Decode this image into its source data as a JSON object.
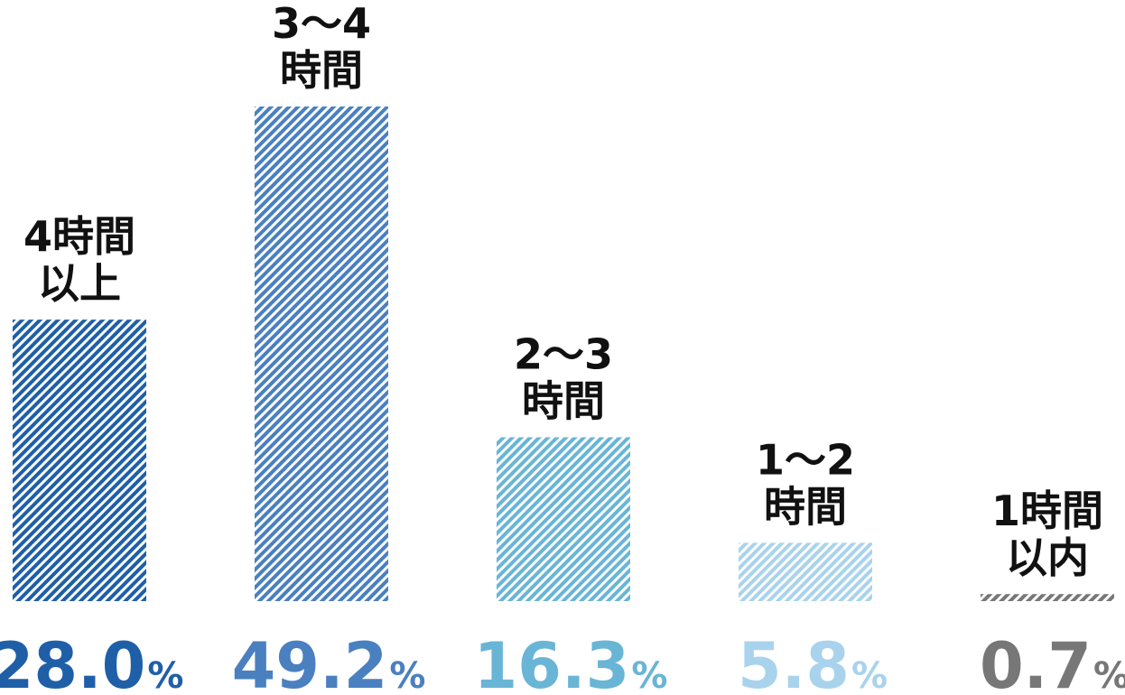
{
  "chart_data": {
    "type": "bar",
    "categories": [
      "4時間\n以上",
      "3〜4\n時間",
      "2〜3\n時間",
      "1〜2\n時間",
      "1時間\n以内"
    ],
    "values": [
      28.0,
      49.2,
      16.3,
      5.8,
      0.7
    ],
    "value_labels": [
      "28.0",
      "49.2",
      "16.3",
      "5.8",
      "0.7"
    ],
    "unit": "%",
    "colors": [
      "#1f5fa8",
      "#4a80c0",
      "#69b5d6",
      "#a9d3ec",
      "#777777"
    ],
    "ylim": [
      0,
      49.2
    ],
    "grid": false,
    "legend": "none",
    "title": "",
    "xlabel": "",
    "ylabel": ""
  }
}
